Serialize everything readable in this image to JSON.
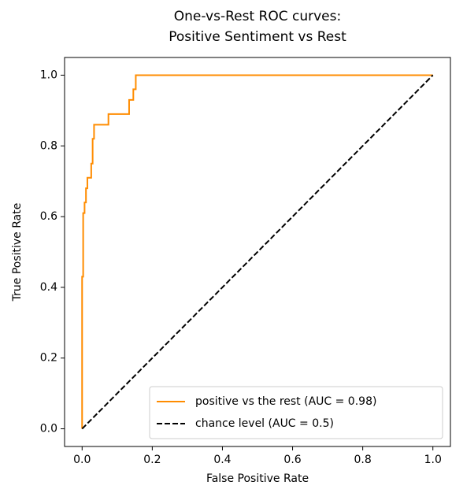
{
  "chart_data": {
    "type": "line",
    "title": [
      "One-vs-Rest ROC curves:",
      "Positive Sentiment vs Rest"
    ],
    "x_label": "False Positive Rate",
    "y_label": "True Positive Rate",
    "xlim": [
      -0.05,
      1.05
    ],
    "ylim": [
      -0.05,
      1.05
    ],
    "xticks": [
      {
        "value": 0,
        "label": "0.0"
      },
      0.2,
      0.4,
      0.6,
      0.8,
      {
        "value": 1,
        "label": "1.0"
      }
    ],
    "yticks": [
      {
        "value": 0,
        "label": "0.0"
      },
      0.2,
      0.4,
      0.6,
      0.8,
      {
        "value": 1,
        "label": "1.0"
      }
    ],
    "grid": false,
    "legend_loc": "lower right",
    "series": [
      {
        "name": "positive vs the rest (AUC = 0.98)",
        "color": "#ff8c00",
        "linestyle": "solid",
        "x": [
          0,
          0,
          0.003,
          0.003,
          0.007,
          0.007,
          0.011,
          0.011,
          0.015,
          0.015,
          0.026,
          0.026,
          0.03,
          0.03,
          0.034,
          0.034,
          0.075,
          0.075,
          0.134,
          0.134,
          0.146,
          0.146,
          0.153,
          0.153,
          1
        ],
        "values": [
          0,
          0.43,
          0.43,
          0.61,
          0.61,
          0.64,
          0.64,
          0.68,
          0.68,
          0.71,
          0.71,
          0.75,
          0.75,
          0.82,
          0.82,
          0.86,
          0.86,
          0.89,
          0.89,
          0.93,
          0.93,
          0.96,
          0.96,
          1,
          1
        ]
      },
      {
        "name": "chance level (AUC = 0.5)",
        "color": "#000000",
        "linestyle": "dashed",
        "x": [
          0,
          1
        ],
        "values": [
          0,
          1
        ]
      }
    ]
  }
}
